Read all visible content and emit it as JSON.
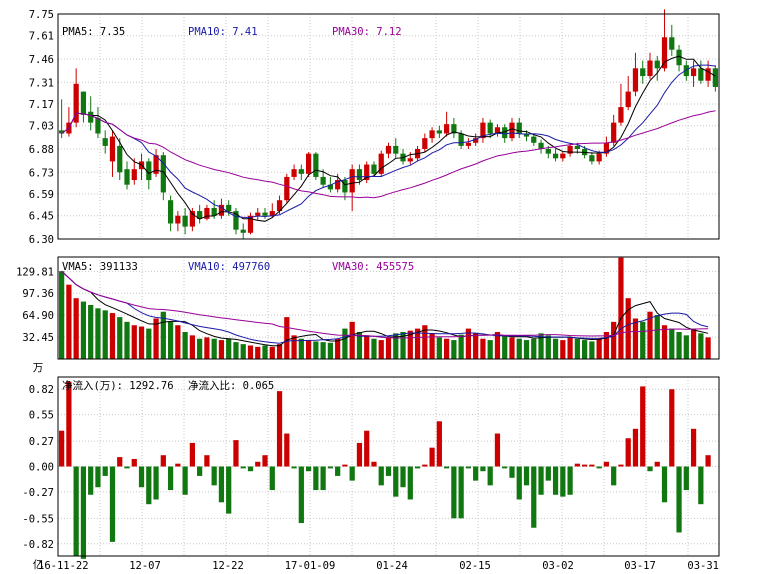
{
  "chart_data": [
    {
      "type": "candlestick",
      "legend": [
        {
          "label": "PMA5: 7.35",
          "color": "#000000"
        },
        {
          "label": "PMA10: 7.41",
          "color": "#1a1aa8"
        },
        {
          "label": "PMA30: 7.12",
          "color": "#990099"
        }
      ],
      "y_ticks": [
        "7.75",
        "7.61",
        "7.46",
        "7.31",
        "7.17",
        "7.03",
        "6.88",
        "6.73",
        "6.59",
        "6.45",
        "6.30"
      ],
      "ylim": [
        6.3,
        7.75
      ],
      "grid": true,
      "colors": {
        "up": "#cc0000",
        "down": "#117711",
        "ma5": "#000000",
        "ma10": "#1a1aa8",
        "ma30": "#990099"
      },
      "candles": [
        [
          7.0,
          6.98,
          7.2,
          6.95
        ],
        [
          6.98,
          7.05,
          7.15,
          6.96
        ],
        [
          7.05,
          7.3,
          7.4,
          7.02
        ],
        [
          7.25,
          7.1,
          7.25,
          7.05
        ],
        [
          7.12,
          7.05,
          7.22,
          7.0
        ],
        [
          7.08,
          6.98,
          7.15,
          6.95
        ],
        [
          6.95,
          6.9,
          7.0,
          6.85
        ],
        [
          6.8,
          6.96,
          7.0,
          6.7
        ],
        [
          6.9,
          6.73,
          6.95,
          6.68
        ],
        [
          6.75,
          6.65,
          6.8,
          6.62
        ],
        [
          6.68,
          6.75,
          6.82,
          6.65
        ],
        [
          6.75,
          6.8,
          6.85,
          6.68
        ],
        [
          6.8,
          6.68,
          6.82,
          6.62
        ],
        [
          6.72,
          6.84,
          6.88,
          6.7
        ],
        [
          6.84,
          6.6,
          6.86,
          6.55
        ],
        [
          6.55,
          6.4,
          6.58,
          6.35
        ],
        [
          6.4,
          6.45,
          6.48,
          6.35
        ],
        [
          6.45,
          6.38,
          6.5,
          6.33
        ],
        [
          6.38,
          6.48,
          6.5,
          6.35
        ],
        [
          6.48,
          6.43,
          6.52,
          6.4
        ],
        [
          6.43,
          6.5,
          6.52,
          6.42
        ],
        [
          6.5,
          6.45,
          6.55,
          6.43
        ],
        [
          6.45,
          6.52,
          6.56,
          6.43
        ],
        [
          6.52,
          6.48,
          6.55,
          6.45
        ],
        [
          6.48,
          6.36,
          6.5,
          6.33
        ],
        [
          6.36,
          6.34,
          6.4,
          6.3
        ],
        [
          6.34,
          6.45,
          6.47,
          6.33
        ],
        [
          6.45,
          6.47,
          6.5,
          6.42
        ],
        [
          6.47,
          6.45,
          6.5,
          6.43
        ],
        [
          6.45,
          6.48,
          6.53,
          6.44
        ],
        [
          6.48,
          6.55,
          6.58,
          6.46
        ],
        [
          6.55,
          6.7,
          6.72,
          6.53
        ],
        [
          6.7,
          6.75,
          6.78,
          6.68
        ],
        [
          6.75,
          6.72,
          6.78,
          6.68
        ],
        [
          6.72,
          6.85,
          6.86,
          6.7
        ],
        [
          6.85,
          6.7,
          6.86,
          6.68
        ],
        [
          6.7,
          6.65,
          6.75,
          6.63
        ],
        [
          6.65,
          6.62,
          6.7,
          6.6
        ],
        [
          6.62,
          6.68,
          6.72,
          6.6
        ],
        [
          6.68,
          6.6,
          6.7,
          6.55
        ],
        [
          6.6,
          6.75,
          6.78,
          6.48
        ],
        [
          6.75,
          6.68,
          6.78,
          6.65
        ],
        [
          6.68,
          6.78,
          6.8,
          6.66
        ],
        [
          6.78,
          6.72,
          6.8,
          6.7
        ],
        [
          6.72,
          6.85,
          6.87,
          6.7
        ],
        [
          6.85,
          6.9,
          6.92,
          6.82
        ],
        [
          6.9,
          6.85,
          6.95,
          6.82
        ],
        [
          6.85,
          6.8,
          6.88,
          6.78
        ],
        [
          6.8,
          6.82,
          6.86,
          6.78
        ],
        [
          6.82,
          6.88,
          6.9,
          6.8
        ],
        [
          6.88,
          6.95,
          6.98,
          6.86
        ],
        [
          6.95,
          7.0,
          7.02,
          6.92
        ],
        [
          7.0,
          6.98,
          7.03,
          6.95
        ],
        [
          6.98,
          7.04,
          7.12,
          6.96
        ],
        [
          7.04,
          6.98,
          7.08,
          6.95
        ],
        [
          6.98,
          6.9,
          7.0,
          6.88
        ],
        [
          6.9,
          6.92,
          6.95,
          6.88
        ],
        [
          6.92,
          6.95,
          6.98,
          6.9
        ],
        [
          6.95,
          7.05,
          7.08,
          6.92
        ],
        [
          7.05,
          6.98,
          7.07,
          6.95
        ],
        [
          6.98,
          7.02,
          7.04,
          6.96
        ],
        [
          7.02,
          6.95,
          7.04,
          6.92
        ],
        [
          6.95,
          7.05,
          7.08,
          6.93
        ],
        [
          7.05,
          6.98,
          7.08,
          6.95
        ],
        [
          6.98,
          6.96,
          7.0,
          6.93
        ],
        [
          6.96,
          6.92,
          6.98,
          6.9
        ],
        [
          6.92,
          6.88,
          6.94,
          6.85
        ],
        [
          6.88,
          6.85,
          6.9,
          6.82
        ],
        [
          6.85,
          6.82,
          6.88,
          6.8
        ],
        [
          6.82,
          6.85,
          6.86,
          6.8
        ],
        [
          6.85,
          6.9,
          6.92,
          6.83
        ],
        [
          6.9,
          6.88,
          6.92,
          6.85
        ],
        [
          6.88,
          6.84,
          6.9,
          6.82
        ],
        [
          6.84,
          6.8,
          6.86,
          6.78
        ],
        [
          6.8,
          6.85,
          6.87,
          6.78
        ],
        [
          6.85,
          6.92,
          6.96,
          6.83
        ],
        [
          6.92,
          7.05,
          7.1,
          6.9
        ],
        [
          7.05,
          7.15,
          7.3,
          7.03
        ],
        [
          7.15,
          7.25,
          7.35,
          7.13
        ],
        [
          7.25,
          7.4,
          7.5,
          7.22
        ],
        [
          7.4,
          7.35,
          7.45,
          7.3
        ],
        [
          7.35,
          7.45,
          7.5,
          7.33
        ],
        [
          7.45,
          7.4,
          7.48,
          7.32
        ],
        [
          7.4,
          7.6,
          7.78,
          7.38
        ],
        [
          7.6,
          7.52,
          7.68,
          7.48
        ],
        [
          7.52,
          7.42,
          7.55,
          7.38
        ],
        [
          7.42,
          7.35,
          7.45,
          7.32
        ],
        [
          7.35,
          7.4,
          7.45,
          7.28
        ],
        [
          7.4,
          7.32,
          7.45,
          7.3
        ],
        [
          7.32,
          7.4,
          7.45,
          7.28
        ],
        [
          7.4,
          7.28,
          7.42,
          7.25
        ]
      ]
    },
    {
      "type": "bar",
      "legend": [
        {
          "label": "VMA5: 391133",
          "color": "#000000"
        },
        {
          "label": "VMA10: 497760",
          "color": "#1a1aa8"
        },
        {
          "label": "VMA30: 455575",
          "color": "#990099"
        }
      ],
      "y_ticks": [
        "129.81",
        "97.36",
        "64.90",
        "32.45"
      ],
      "unit": "万",
      "ylim": [
        0,
        151
      ],
      "values": [
        130,
        110,
        90,
        85,
        80,
        75,
        72,
        68,
        62,
        55,
        50,
        48,
        45,
        60,
        70,
        55,
        50,
        40,
        35,
        30,
        32,
        30,
        28,
        30,
        25,
        22,
        20,
        18,
        20,
        18,
        22,
        62,
        35,
        30,
        28,
        26,
        25,
        24,
        30,
        45,
        55,
        40,
        35,
        30,
        28,
        32,
        38,
        40,
        42,
        45,
        50,
        38,
        32,
        30,
        28,
        36,
        45,
        38,
        30,
        28,
        40,
        35,
        32,
        30,
        28,
        30,
        38,
        35,
        30,
        28,
        32,
        30,
        28,
        26,
        30,
        40,
        55,
        150,
        90,
        60,
        55,
        70,
        65,
        50,
        45,
        40,
        35,
        45,
        38,
        32
      ]
    },
    {
      "type": "bar",
      "legend": [
        {
          "label": "净流入(万): 1292.76",
          "color": "#cc0000"
        },
        {
          "label": "净流入比: 0.065",
          "color": "#cc0000"
        }
      ],
      "y_ticks": [
        "0.82",
        "0.55",
        "0.27",
        "0.00",
        "-0.27",
        "-0.55",
        "-0.82"
      ],
      "unit": "亿",
      "ylim": [
        -0.95,
        0.95
      ],
      "values": [
        0.38,
        0.9,
        -0.95,
        -0.98,
        -0.3,
        -0.22,
        -0.1,
        -0.8,
        0.1,
        -0.02,
        0.08,
        -0.22,
        -0.4,
        -0.35,
        0.12,
        -0.25,
        0.03,
        -0.3,
        0.25,
        -0.1,
        0.12,
        -0.2,
        -0.38,
        -0.5,
        0.28,
        -0.02,
        -0.05,
        0.05,
        0.12,
        -0.25,
        0.8,
        0.35,
        -0.02,
        -0.6,
        -0.05,
        -0.25,
        -0.25,
        -0.02,
        -0.1,
        0.02,
        -0.15,
        0.25,
        0.38,
        0.05,
        -0.2,
        -0.1,
        -0.32,
        -0.22,
        -0.35,
        -0.02,
        0.02,
        0.2,
        0.48,
        -0.02,
        -0.55,
        -0.55,
        -0.02,
        -0.15,
        -0.05,
        -0.2,
        0.35,
        -0.02,
        -0.12,
        -0.35,
        -0.2,
        -0.65,
        -0.3,
        -0.15,
        -0.3,
        -0.32,
        -0.3,
        0.03,
        0.02,
        0.02,
        -0.02,
        0.05,
        -0.2,
        0.02,
        0.3,
        0.4,
        0.85,
        -0.05,
        0.05,
        -0.38,
        0.82,
        -0.7,
        -0.25,
        0.4,
        -0.4,
        0.12
      ],
      "x_tick_labels": [
        "16-11-22",
        "12-07",
        "12-22",
        "17-01-09",
        "01-24",
        "02-15",
        "03-02",
        "03-17",
        "03-31"
      ]
    }
  ]
}
